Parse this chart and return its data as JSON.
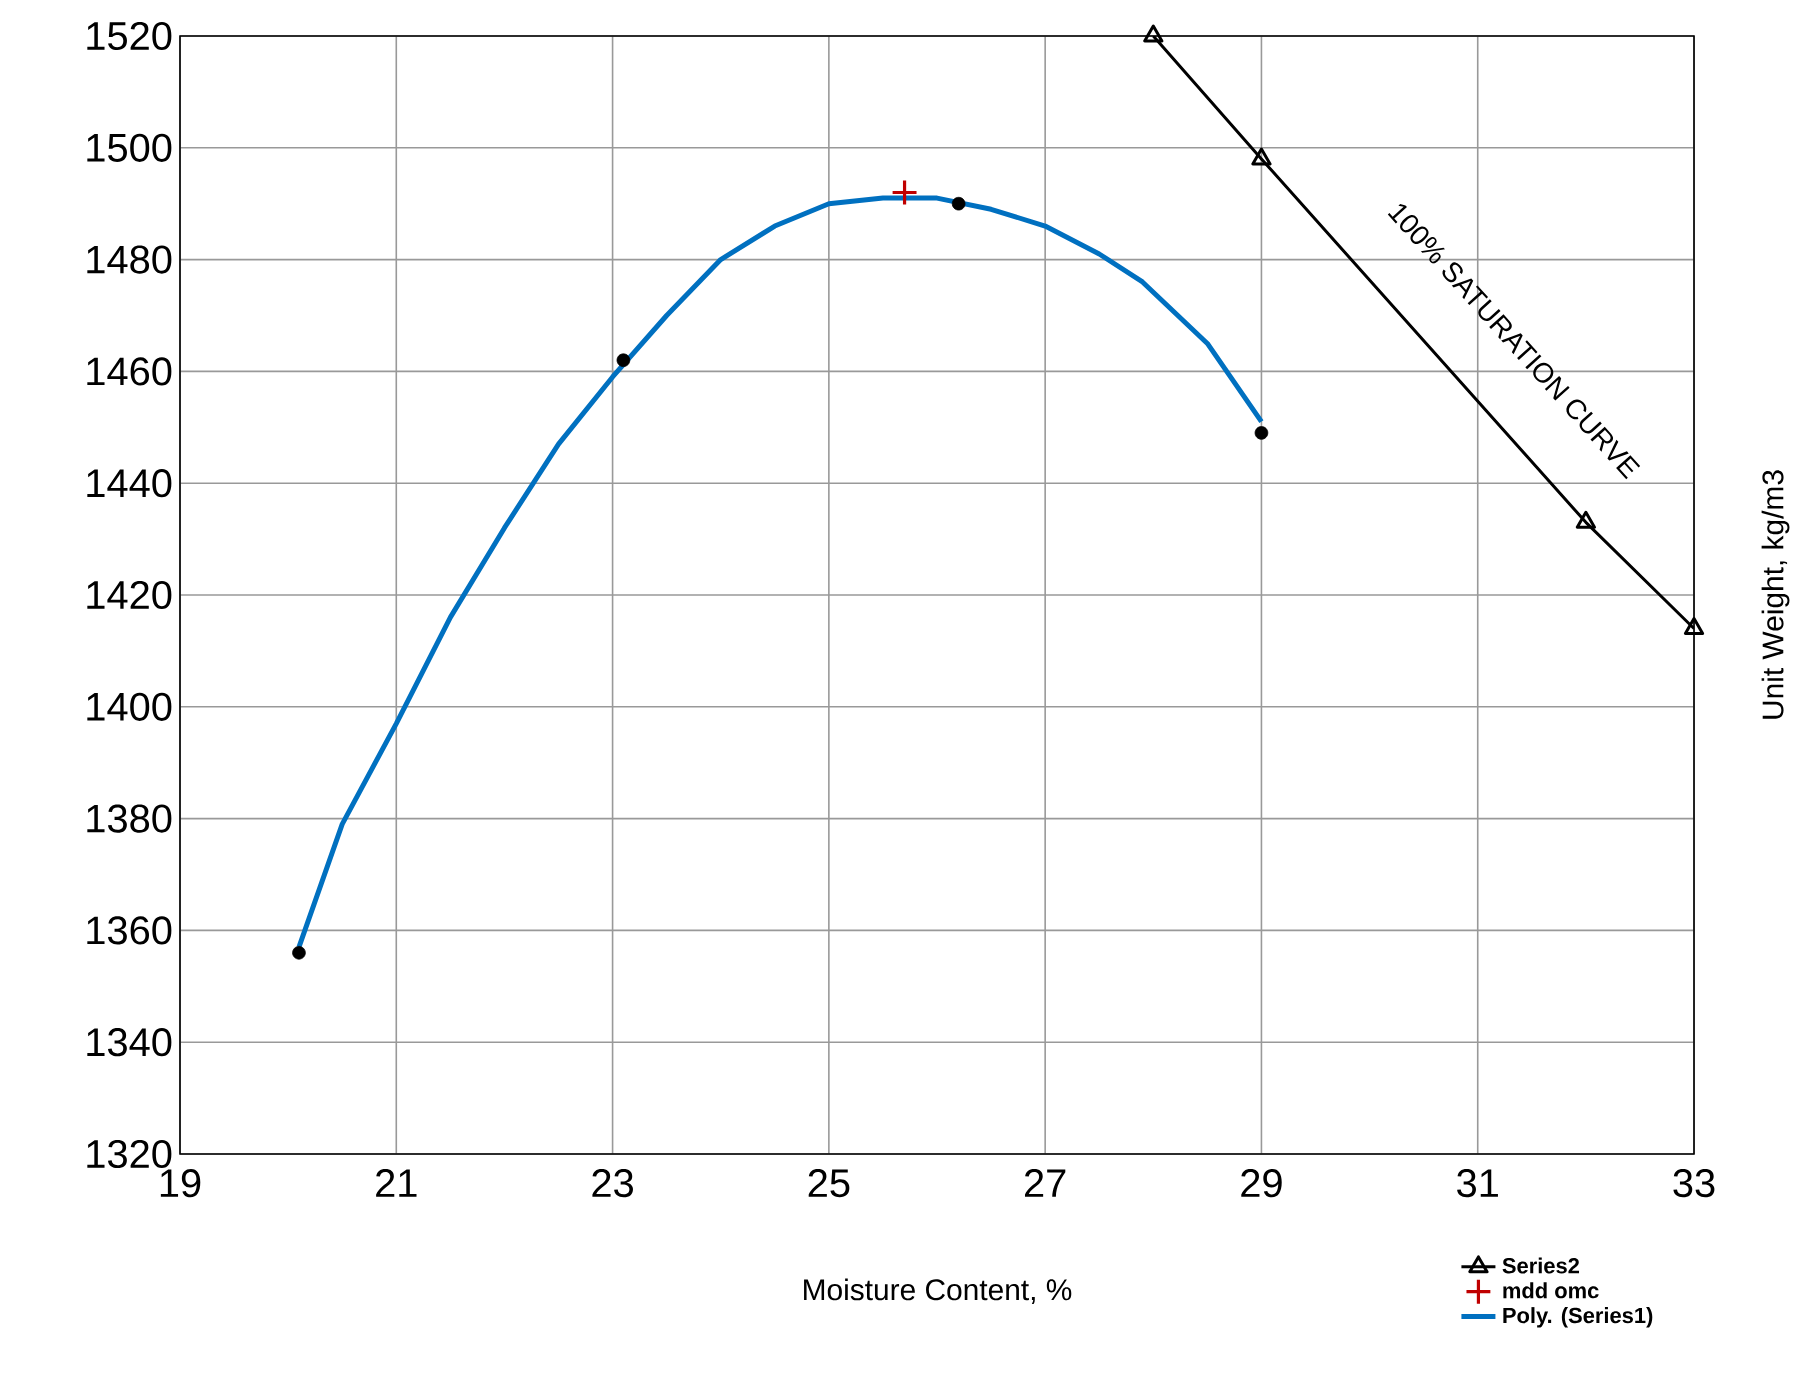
{
  "chart_data": {
    "type": "line",
    "xlabel": "Moisture Content, %",
    "ylabel": "Unit Weight, kg/m3",
    "xlim": [
      19,
      33
    ],
    "ylim": [
      1320,
      1520
    ],
    "xticks": [
      19,
      21,
      23,
      25,
      27,
      29,
      31,
      33
    ],
    "yticks": [
      1320,
      1340,
      1360,
      1380,
      1400,
      1420,
      1440,
      1460,
      1480,
      1500,
      1520
    ],
    "grid": true,
    "legend": "bottom right",
    "annotations": [
      "100% SATURATION CURVE"
    ],
    "series": [
      {
        "type": "scatter",
        "color": "#000000",
        "marker": "circle",
        "x": [
          20.1,
          23.1,
          26.2,
          29
        ],
        "values": [
          1356,
          1462,
          1490,
          1449
        ]
      },
      {
        "name": "Series2",
        "type": "line",
        "color": "#000000",
        "marker": "triangle",
        "x": [
          28,
          29,
          32,
          33
        ],
        "values": [
          1520,
          1498,
          1433,
          1414
        ]
      },
      {
        "name": "mdd omc",
        "type": "scatter",
        "color": "#c00000",
        "marker": "cross",
        "x": [
          25.7
        ],
        "values": [
          1492
        ]
      },
      {
        "name": "Poly. (Series1)",
        "type": "line",
        "color": "#0070c0",
        "marker": "none",
        "x": [
          20.1,
          20.5,
          21,
          21.5,
          22,
          22.5,
          23,
          23.5,
          24,
          24.5,
          25,
          25.5,
          26,
          26.5,
          27,
          27.5,
          27.9,
          28.5,
          29
        ],
        "values": [
          1357,
          1379,
          1397,
          1416,
          1432,
          1447,
          1459,
          1470,
          1480,
          1486,
          1490,
          1491,
          1491,
          1489,
          1486,
          1481,
          1476,
          1465,
          1451
        ]
      }
    ]
  }
}
